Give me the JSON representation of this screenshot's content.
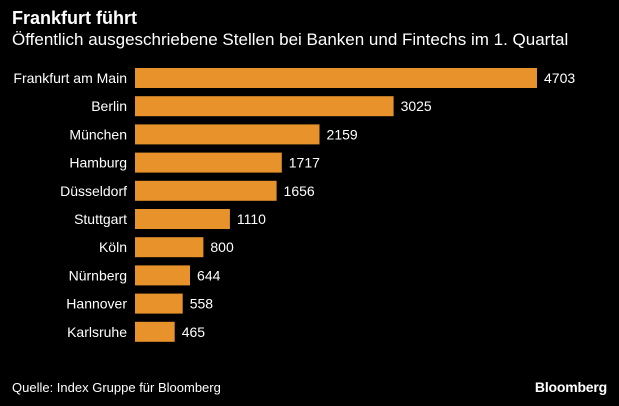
{
  "title": "Frankfurt führt",
  "subtitle": "Öffentlich ausgeschriebene Stellen bei Banken und Fintechs im 1. Quartal",
  "source": "Quelle: Index Gruppe für Bloomberg",
  "brand": "Bloomberg",
  "colors": {
    "background": "#000000",
    "bar": "#E8922C",
    "text": "#FFFFFF"
  },
  "chart_data": {
    "type": "bar",
    "orientation": "horizontal",
    "title": "Frankfurt führt",
    "subtitle": "Öffentlich ausgeschriebene Stellen bei Banken und Fintechs im 1. Quartal",
    "categories": [
      "Frankfurt am Main",
      "Berlin",
      "München",
      "Hamburg",
      "Düsseldorf",
      "Stuttgart",
      "Köln",
      "Nürnberg",
      "Hannover",
      "Karlsruhe"
    ],
    "values": [
      4703,
      3025,
      2159,
      1717,
      1656,
      1110,
      800,
      644,
      558,
      465
    ],
    "data_labels": [
      "4703",
      "3025",
      "2159",
      "1717",
      "1656",
      "1110",
      "800",
      "644",
      "558",
      "465"
    ],
    "xlim": [
      0,
      4703
    ],
    "grid": false,
    "legend": "none"
  }
}
